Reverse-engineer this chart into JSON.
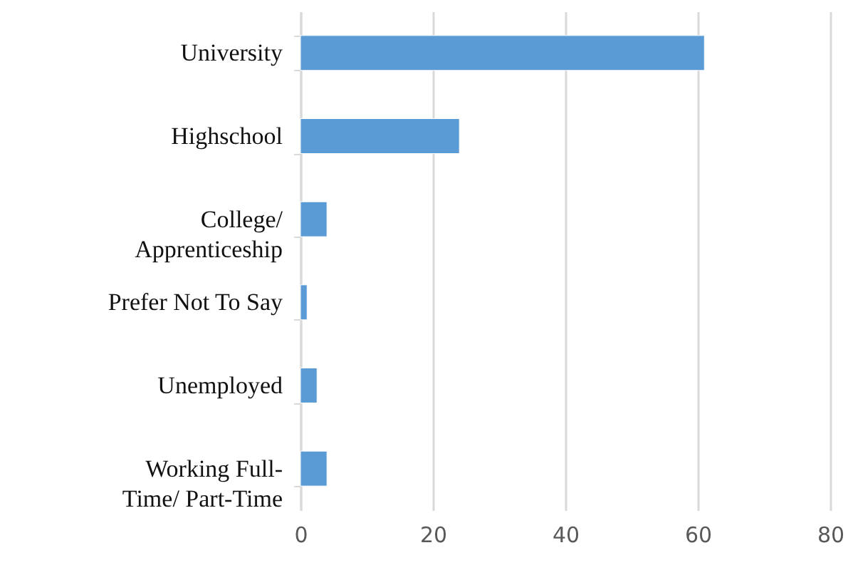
{
  "chart_data": {
    "type": "bar",
    "orientation": "horizontal",
    "categories": [
      "University",
      "Highschool",
      "College/\nApprenticeship",
      "Prefer Not To Say",
      "Unemployed",
      "Working Full-\nTime/ Part-Time"
    ],
    "values": [
      61,
      24,
      4,
      1,
      2.5,
      4
    ],
    "color": "#5b9bd5",
    "xlim": [
      0,
      80
    ],
    "xticks": [
      0,
      20,
      40,
      60,
      80
    ],
    "grid": "x"
  }
}
